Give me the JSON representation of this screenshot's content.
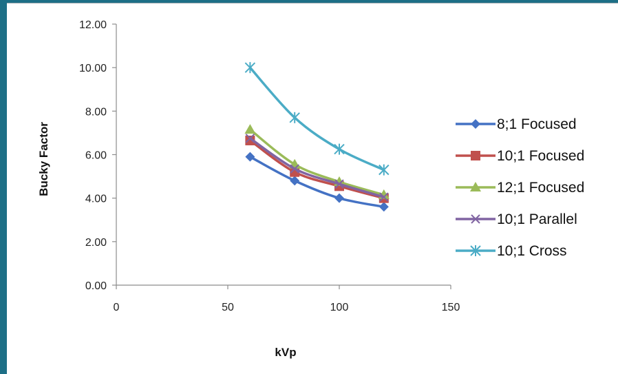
{
  "chart_data": {
    "type": "line",
    "title": "",
    "xlabel": "kVp",
    "ylabel": "Bucky Factor",
    "xlim": [
      0,
      150
    ],
    "ylim": [
      0,
      12
    ],
    "x_ticks": [
      "0",
      "50",
      "100",
      "150"
    ],
    "y_ticks": [
      "0.00",
      "2.00",
      "4.00",
      "6.00",
      "8.00",
      "10.00",
      "12.00"
    ],
    "grid": false,
    "legend_position": "right",
    "x": [
      60,
      80,
      100,
      120
    ],
    "series": [
      {
        "name": "8;1 Focused",
        "values": [
          5.9,
          4.8,
          4.0,
          3.6
        ],
        "color": "#4472c4",
        "marker": "diamond"
      },
      {
        "name": "10;1  Focused",
        "values": [
          6.65,
          5.2,
          4.55,
          4.0
        ],
        "color": "#c0504d",
        "marker": "square"
      },
      {
        "name": "12;1 Focused",
        "values": [
          7.15,
          5.55,
          4.75,
          4.15
        ],
        "color": "#9bbb59",
        "marker": "triangle"
      },
      {
        "name": "10;1 Parallel",
        "values": [
          6.75,
          5.35,
          4.65,
          4.05
        ],
        "color": "#8064a2",
        "marker": "x"
      },
      {
        "name": "10;1 Cross",
        "values": [
          10.0,
          7.7,
          6.25,
          5.3
        ],
        "color": "#4bacc6",
        "marker": "star"
      }
    ]
  }
}
